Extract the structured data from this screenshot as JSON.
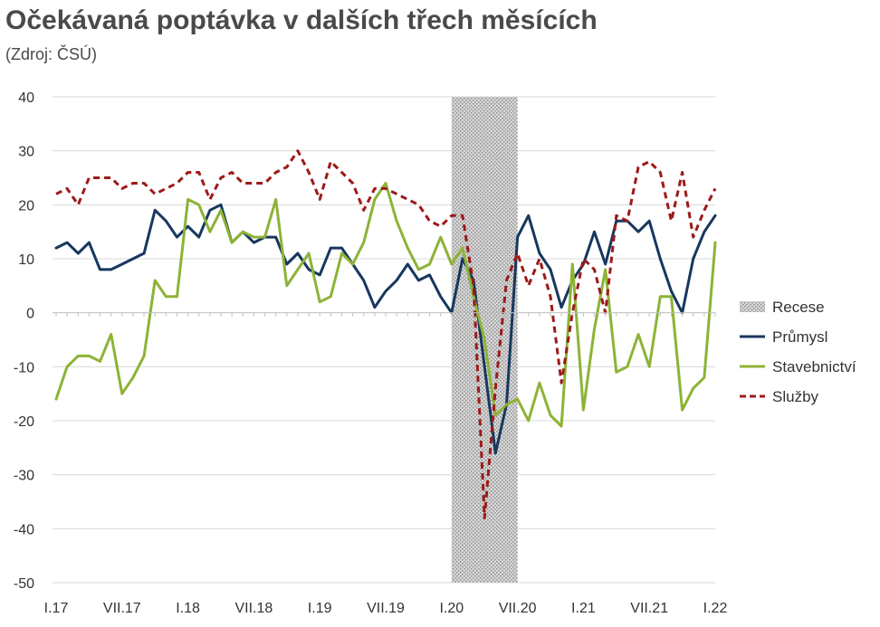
{
  "chart_data": {
    "type": "line",
    "title": "Očekávaná poptávka v dalších třech měsících",
    "subtitle": "(Zdroj: ČSÚ)",
    "ylim": [
      -50,
      40
    ],
    "yticks": [
      40,
      30,
      20,
      10,
      0,
      -10,
      -20,
      -30,
      -40,
      -50
    ],
    "n_months": 61,
    "xtick_labels": [
      {
        "i": 0,
        "label": "I.17"
      },
      {
        "i": 6,
        "label": "VII.17"
      },
      {
        "i": 12,
        "label": "I.18"
      },
      {
        "i": 18,
        "label": "VII.18"
      },
      {
        "i": 24,
        "label": "I.19"
      },
      {
        "i": 30,
        "label": "VII.19"
      },
      {
        "i": 36,
        "label": "I.20"
      },
      {
        "i": 42,
        "label": "VII.20"
      },
      {
        "i": 48,
        "label": "I.21"
      },
      {
        "i": 54,
        "label": "VII.21"
      },
      {
        "i": 60,
        "label": "I.22"
      }
    ],
    "recession": {
      "name": "Recese",
      "start": 36,
      "end": 42
    },
    "grid": true,
    "legend_position": "right",
    "series": [
      {
        "name": "Průmysl",
        "color": "#17375e",
        "dash": false,
        "values": [
          12,
          13,
          11,
          13,
          8,
          8,
          9,
          10,
          11,
          19,
          17,
          14,
          16,
          14,
          19,
          20,
          13,
          15,
          13,
          14,
          14,
          9,
          11,
          8,
          7,
          12,
          12,
          9,
          6,
          1,
          4,
          6,
          9,
          6,
          7,
          3,
          0,
          10,
          6,
          -10,
          -26,
          -17,
          14,
          18,
          11,
          8,
          1,
          6,
          9,
          15,
          9,
          17,
          17,
          15,
          17,
          10,
          4,
          0,
          10,
          15,
          18
        ]
      },
      {
        "name": "Stavebnictví",
        "color": "#8db336",
        "dash": false,
        "values": [
          -16,
          -10,
          -8,
          -8,
          -9,
          -4,
          -15,
          -12,
          -8,
          6,
          3,
          3,
          21,
          20,
          15,
          19,
          13,
          15,
          14,
          14,
          21,
          5,
          8,
          11,
          2,
          3,
          11,
          9,
          13,
          21,
          24,
          17,
          12,
          8,
          9,
          14,
          9,
          12,
          3,
          -5,
          -19,
          -17,
          -16,
          -20,
          -13,
          -19,
          -21,
          9,
          -18,
          -3,
          8,
          -11,
          -10,
          -4,
          -10,
          3,
          3,
          -18,
          -14,
          -12,
          13
        ]
      },
      {
        "name": "Služby",
        "color": "#9c1a1a",
        "dash": true,
        "values": [
          22,
          23,
          20,
          25,
          25,
          25,
          23,
          24,
          24,
          22,
          23,
          24,
          26,
          26,
          21,
          25,
          26,
          24,
          24,
          24,
          26,
          27,
          30,
          26,
          21,
          28,
          26,
          24,
          19,
          23,
          23,
          22,
          21,
          20,
          17,
          16,
          18,
          18,
          5,
          -38,
          -14,
          6,
          11,
          5,
          10,
          3,
          -13,
          0,
          10,
          8,
          0,
          18,
          17,
          27,
          28,
          26,
          17,
          26,
          14,
          19,
          23
        ]
      }
    ]
  }
}
